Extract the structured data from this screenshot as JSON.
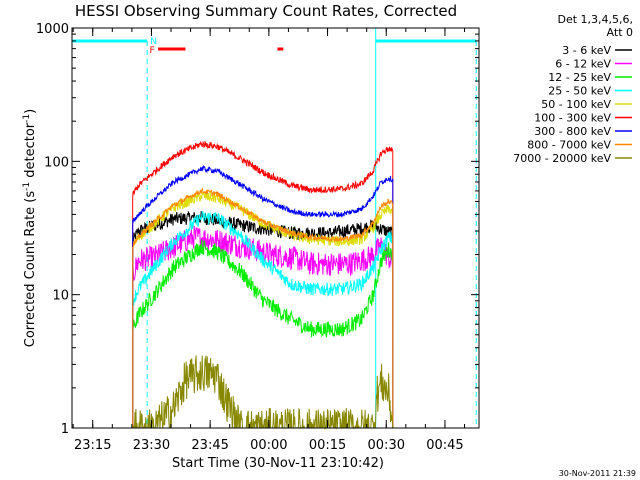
{
  "chart_data": {
    "type": "line",
    "title": "HESSI Observing Summary Count Rates, Corrected",
    "xlabel": "Start Time (30-Nov-11 23:10:42)",
    "ylabel_main": "Corrected Count Rate (s",
    "ylabel_sup1": "-1",
    "ylabel_mid": " detector",
    "ylabel_sup2": "-1",
    "ylabel_end": ")",
    "yscale": "log",
    "ylim": [
      1,
      1000
    ],
    "xlim": [
      -1,
      103
    ],
    "x_unit": "minutes after 23:10:42",
    "xtick_values": [
      4.3,
      19.3,
      34.3,
      49.3,
      64.3,
      79.3,
      94.3
    ],
    "xtick_labels": [
      "23:15",
      "23:30",
      "23:45",
      "00:00",
      "00:15",
      "00:30",
      "00:45"
    ],
    "ytick_values": [
      1,
      10,
      100,
      1000
    ],
    "ytick_labels": [
      "1",
      "10",
      "100",
      "1000"
    ],
    "legend": {
      "header": [
        "Det 1,3,4,5,6,",
        "Att 0"
      ],
      "placement": "right"
    },
    "series": [
      {
        "name": "3 - 6 keV",
        "color": "#000000",
        "key": [
          [
            14.5,
            25
          ],
          [
            16,
            30
          ],
          [
            20,
            33
          ],
          [
            25,
            37
          ],
          [
            32,
            38
          ],
          [
            38,
            35
          ],
          [
            45,
            32
          ],
          [
            55,
            29
          ],
          [
            65,
            29
          ],
          [
            72,
            31
          ],
          [
            76,
            33
          ],
          [
            78,
            31
          ],
          [
            81,
            29
          ]
        ],
        "noise": 0.05
      },
      {
        "name": "6 - 12 keV",
        "color": "#ff00ff",
        "key": [
          [
            14.5,
            14
          ],
          [
            16,
            18
          ],
          [
            20,
            19
          ],
          [
            24,
            22
          ],
          [
            30,
            27
          ],
          [
            35,
            26
          ],
          [
            40,
            24
          ],
          [
            45,
            22
          ],
          [
            50,
            20
          ],
          [
            55,
            19
          ],
          [
            60,
            17
          ],
          [
            65,
            17
          ],
          [
            70,
            17
          ],
          [
            75,
            19
          ],
          [
            78,
            23
          ],
          [
            81,
            17
          ]
        ],
        "noise": 0.09
      },
      {
        "name": "12 - 25 keV",
        "color": "#00ee00",
        "key": [
          [
            14.5,
            5.5
          ],
          [
            16,
            7
          ],
          [
            20,
            10
          ],
          [
            25,
            16
          ],
          [
            32,
            23
          ],
          [
            36,
            21
          ],
          [
            42,
            15
          ],
          [
            48,
            9
          ],
          [
            55,
            6.5
          ],
          [
            60,
            5.5
          ],
          [
            68,
            5.5
          ],
          [
            73,
            6.5
          ],
          [
            76,
            10
          ],
          [
            78,
            18
          ],
          [
            80,
            22
          ],
          [
            81,
            20
          ]
        ],
        "noise": 0.06
      },
      {
        "name": "25 - 50 keV",
        "color": "#00ffff",
        "key": [
          [
            14.5,
            9
          ],
          [
            16,
            11
          ],
          [
            20,
            16
          ],
          [
            25,
            25
          ],
          [
            32,
            38
          ],
          [
            36,
            38
          ],
          [
            42,
            28
          ],
          [
            48,
            18
          ],
          [
            55,
            12
          ],
          [
            60,
            11
          ],
          [
            68,
            11
          ],
          [
            73,
            12
          ],
          [
            76,
            16
          ],
          [
            78,
            22
          ],
          [
            80,
            27
          ],
          [
            81,
            26
          ]
        ],
        "noise": 0.05
      },
      {
        "name": "50 - 100 keV",
        "color": "#dddd00",
        "key": [
          [
            14.5,
            23
          ],
          [
            16,
            27
          ],
          [
            20,
            34
          ],
          [
            25,
            45
          ],
          [
            32,
            55
          ],
          [
            36,
            53
          ],
          [
            42,
            44
          ],
          [
            48,
            34
          ],
          [
            55,
            28
          ],
          [
            60,
            26
          ],
          [
            68,
            25
          ],
          [
            73,
            26
          ],
          [
            76,
            32
          ],
          [
            78,
            40
          ],
          [
            80,
            44
          ],
          [
            81,
            42
          ]
        ],
        "noise": 0.04
      },
      {
        "name": "100 - 300 keV",
        "color": "#ff0000",
        "key": [
          [
            14.5,
            56
          ],
          [
            16,
            66
          ],
          [
            20,
            83
          ],
          [
            25,
            110
          ],
          [
            32,
            135
          ],
          [
            36,
            130
          ],
          [
            42,
            105
          ],
          [
            48,
            82
          ],
          [
            55,
            66
          ],
          [
            60,
            61
          ],
          [
            68,
            62
          ],
          [
            73,
            68
          ],
          [
            76,
            85
          ],
          [
            78,
            115
          ],
          [
            80,
            125
          ],
          [
            81,
            118
          ]
        ],
        "noise": 0.025
      },
      {
        "name": "300 - 800 keV",
        "color": "#0000ff",
        "key": [
          [
            14.5,
            35
          ],
          [
            16,
            40
          ],
          [
            20,
            52
          ],
          [
            25,
            70
          ],
          [
            32,
            88
          ],
          [
            36,
            85
          ],
          [
            42,
            67
          ],
          [
            48,
            52
          ],
          [
            55,
            42
          ],
          [
            60,
            40
          ],
          [
            68,
            40
          ],
          [
            73,
            44
          ],
          [
            76,
            55
          ],
          [
            78,
            70
          ],
          [
            80,
            75
          ],
          [
            81,
            73
          ]
        ],
        "noise": 0.02
      },
      {
        "name": "800 - 7000 keV",
        "color": "#ff8800",
        "key": [
          [
            14.5,
            23
          ],
          [
            16,
            27
          ],
          [
            20,
            35
          ],
          [
            25,
            47
          ],
          [
            32,
            60
          ],
          [
            36,
            57
          ],
          [
            42,
            45
          ],
          [
            48,
            35
          ],
          [
            55,
            29
          ],
          [
            60,
            27
          ],
          [
            68,
            26
          ],
          [
            73,
            28
          ],
          [
            76,
            35
          ],
          [
            78,
            46
          ],
          [
            80,
            50
          ],
          [
            81,
            48
          ]
        ],
        "noise": 0.02
      },
      {
        "name": "7000 - 20000 keV",
        "color": "#888800",
        "key": [
          [
            14.5,
            1
          ],
          [
            20,
            1
          ],
          [
            25,
            1.4
          ],
          [
            28,
            2.3
          ],
          [
            32,
            2.6
          ],
          [
            36,
            2.5
          ],
          [
            38,
            1.7
          ],
          [
            40,
            1.3
          ],
          [
            42,
            1
          ],
          [
            76,
            1
          ],
          [
            77,
            1.8
          ],
          [
            78,
            2.2
          ],
          [
            80,
            1.8
          ],
          [
            81,
            1
          ]
        ],
        "noise": 0.15
      }
    ],
    "night_intervals": [
      [
        -1,
        18.2
      ],
      [
        76.6,
        102.3
      ]
    ],
    "saa_markers_x": [
      18.2,
      102.3
    ],
    "flare_flag_intervals": [
      [
        21,
        28
      ],
      [
        51.5,
        53
      ]
    ],
    "flag_labels": {
      "N": {
        "text": "N",
        "x": 19.0,
        "color": "#00ffff"
      },
      "F": {
        "text": "F",
        "x": 18.8,
        "color": "#ff0000"
      }
    },
    "timestamp": "30-Nov-2011 21:39"
  }
}
